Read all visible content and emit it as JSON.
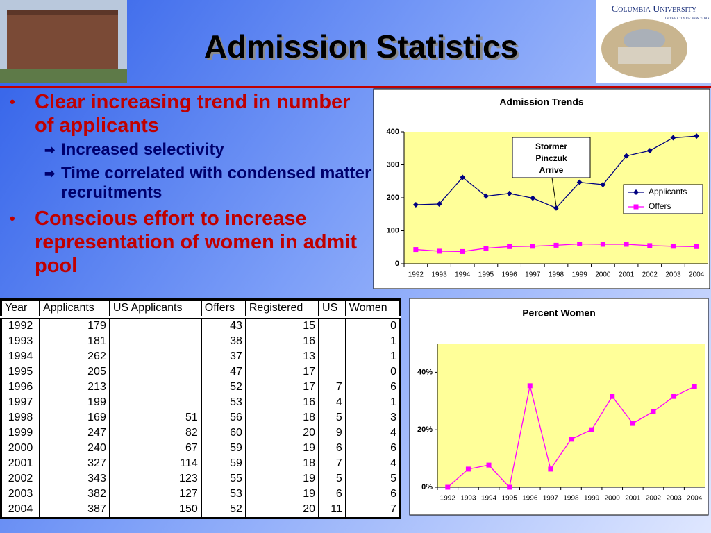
{
  "title": "Admission Statistics",
  "logo": {
    "name": "Columbia University",
    "tagline": "in the city of new york"
  },
  "bullets": [
    {
      "text": "Clear increasing trend in number of applicants",
      "sub": [
        "Increased selectivity",
        "Time correlated with condensed matter recruitments"
      ]
    },
    {
      "text": "Conscious effort to increase representation of women in admit pool"
    }
  ],
  "table": {
    "headers": [
      "Year",
      "Applicants",
      "US Applicants",
      "Offers",
      "Registered",
      "US",
      "Women"
    ],
    "rows": [
      [
        1992,
        179,
        null,
        43,
        15,
        null,
        0
      ],
      [
        1993,
        181,
        null,
        38,
        16,
        null,
        1
      ],
      [
        1994,
        262,
        null,
        37,
        13,
        null,
        1
      ],
      [
        1995,
        205,
        null,
        47,
        17,
        null,
        0
      ],
      [
        1996,
        213,
        null,
        52,
        17,
        7,
        6
      ],
      [
        1997,
        199,
        null,
        53,
        16,
        4,
        1
      ],
      [
        1998,
        169,
        51,
        56,
        18,
        5,
        3
      ],
      [
        1999,
        247,
        82,
        60,
        20,
        9,
        4
      ],
      [
        2000,
        240,
        67,
        59,
        19,
        6,
        6
      ],
      [
        2001,
        327,
        114,
        59,
        18,
        7,
        4
      ],
      [
        2002,
        343,
        123,
        55,
        19,
        5,
        5
      ],
      [
        2003,
        382,
        127,
        53,
        19,
        6,
        6
      ],
      [
        2004,
        387,
        150,
        52,
        20,
        11,
        7
      ]
    ]
  },
  "chart_data": [
    {
      "type": "line",
      "title": "Admission Trends",
      "categories": [
        "1992",
        "1993",
        "1994",
        "1995",
        "1996",
        "1997",
        "1998",
        "1999",
        "2000",
        "2001",
        "2002",
        "2003",
        "2004"
      ],
      "series": [
        {
          "name": "Applicants",
          "color": "#000080",
          "marker": "diamond",
          "values": [
            179,
            181,
            262,
            205,
            213,
            199,
            169,
            247,
            240,
            327,
            343,
            382,
            387
          ]
        },
        {
          "name": "Offers",
          "color": "#ff00ff",
          "marker": "square",
          "values": [
            43,
            38,
            37,
            47,
            52,
            53,
            56,
            60,
            59,
            59,
            55,
            53,
            52
          ]
        }
      ],
      "ylim": [
        0,
        400
      ],
      "yticks": [
        0,
        100,
        200,
        300,
        400
      ],
      "grid": false,
      "legend": "right",
      "annotation": [
        "Stormer",
        "Pinczuk",
        "Arrive"
      ]
    },
    {
      "type": "line",
      "title": "Percent Women",
      "categories": [
        "1992",
        "1993",
        "1994",
        "1995",
        "1996",
        "1997",
        "1998",
        "1999",
        "2000",
        "2001",
        "2002",
        "2003",
        "2004"
      ],
      "values": [
        0,
        6.3,
        7.7,
        0,
        35.3,
        6.3,
        16.7,
        20,
        31.6,
        22.2,
        26.3,
        31.6,
        35
      ],
      "color": "#ff00ff",
      "marker": "square",
      "ylim": [
        0,
        50
      ],
      "yticks": [
        {
          "value": 0,
          "label": "0%"
        },
        {
          "value": 20,
          "label": "20%"
        },
        {
          "value": 40,
          "label": "40%"
        }
      ],
      "grid": false
    }
  ]
}
